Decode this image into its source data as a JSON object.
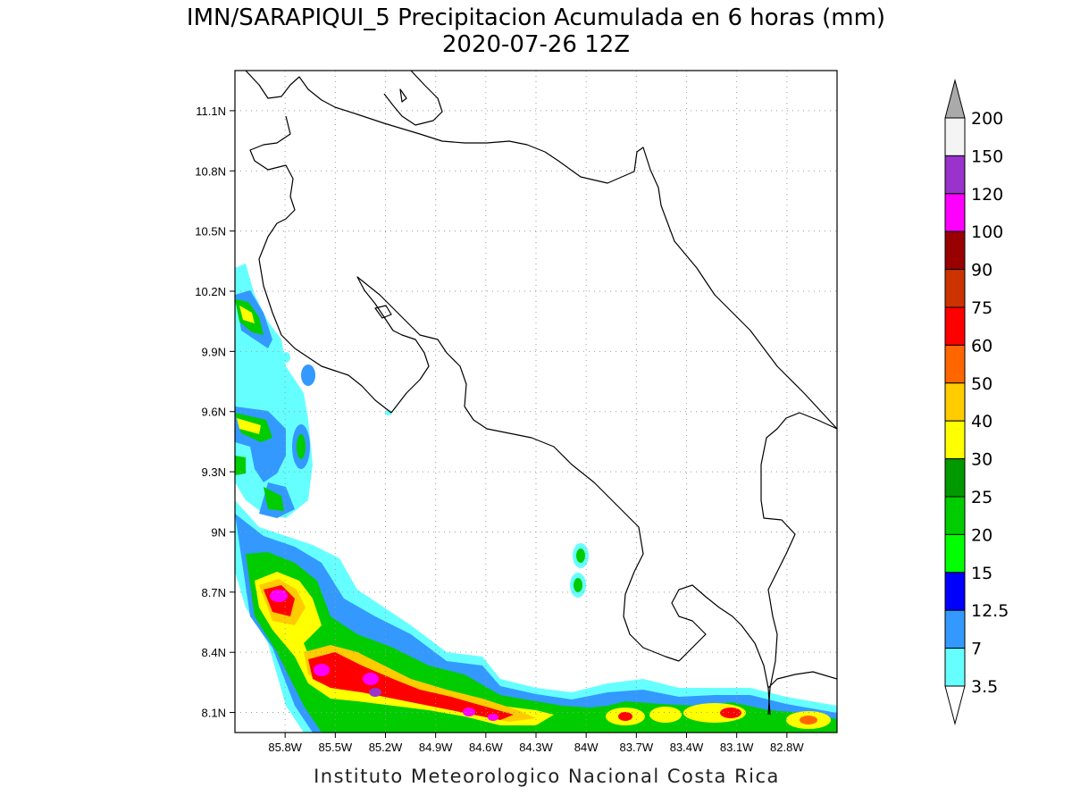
{
  "title": {
    "line1": "IMN/SARAPIQUI_5 Precipitacion Acumulada en 6 horas (mm)",
    "line2": "2020-07-26 12Z"
  },
  "map": {
    "lon_range": [
      -86.1,
      -82.5
    ],
    "lat_range": [
      8.0,
      11.3
    ],
    "lat_ticks": [
      "11.1N",
      "10.8N",
      "10.5N",
      "10.2N",
      "9.9N",
      "9.6N",
      "9.3N",
      "9N",
      "8.7N",
      "8.4N",
      "8.1N"
    ],
    "lat_tick_values": [
      11.1,
      10.8,
      10.5,
      10.2,
      9.9,
      9.6,
      9.3,
      9.0,
      8.7,
      8.4,
      8.1
    ],
    "lon_ticks": [
      "85.8W",
      "85.5W",
      "85.2W",
      "84.9W",
      "84.6W",
      "84.3W",
      "84W",
      "83.7W",
      "83.4W",
      "83.1W",
      "82.8W"
    ],
    "lon_tick_values": [
      -85.8,
      -85.5,
      -85.2,
      -84.9,
      -84.6,
      -84.3,
      -84.0,
      -83.7,
      -83.4,
      -83.1,
      -82.8
    ],
    "gridlines": true
  },
  "colorbar": {
    "labels": [
      "200",
      "150",
      "120",
      "100",
      "90",
      "75",
      "60",
      "50",
      "40",
      "30",
      "25",
      "20",
      "15",
      "12.5",
      "7",
      "3.5"
    ],
    "colors": [
      "#aaaaaa",
      "#f4f4f4",
      "#9933cc",
      "#ff00ff",
      "#990000",
      "#cc3300",
      "#ff0000",
      "#ff6600",
      "#ffcc00",
      "#ffff00",
      "#009900",
      "#00cc00",
      "#00ff00",
      "#0000ff",
      "#3399ff",
      "#66ffff",
      "#ffffff"
    ]
  },
  "precip_cells": [
    {
      "lon": -85.72,
      "lat": 8.68,
      "mm": 150
    },
    {
      "lon": -85.62,
      "lat": 8.64,
      "mm": 75
    },
    {
      "lon": -85.45,
      "lat": 8.82,
      "mm": 20
    },
    {
      "lon": -85.4,
      "lat": 8.35,
      "mm": 150
    },
    {
      "lon": -85.37,
      "lat": 8.26,
      "mm": 120
    },
    {
      "lon": -85.22,
      "lat": 8.26,
      "mm": 150
    },
    {
      "lon": -85.12,
      "lat": 8.16,
      "mm": 120
    },
    {
      "lon": -84.95,
      "lat": 8.16,
      "mm": 50
    },
    {
      "lon": -84.68,
      "lat": 8.14,
      "mm": 120
    },
    {
      "lon": -84.55,
      "lat": 8.08,
      "mm": 150
    },
    {
      "lon": -84.42,
      "lat": 8.1,
      "mm": 60
    },
    {
      "lon": -83.65,
      "lat": 8.08,
      "mm": 60
    },
    {
      "lon": -83.45,
      "lat": 8.09,
      "mm": 40
    },
    {
      "lon": -83.1,
      "lat": 8.1,
      "mm": 90
    },
    {
      "lon": -82.65,
      "lat": 8.08,
      "mm": 60
    },
    {
      "lon": -86.02,
      "lat": 10.1,
      "mm": 30
    },
    {
      "lon": -86.0,
      "lat": 9.58,
      "mm": 40
    },
    {
      "lon": -85.9,
      "lat": 9.4,
      "mm": 30
    },
    {
      "lon": -84.0,
      "lat": 8.86,
      "mm": 15
    },
    {
      "lon": -84.0,
      "lat": 8.73,
      "mm": 15
    }
  ],
  "credit": "Instituto Meteorologico Nacional Costa Rica"
}
